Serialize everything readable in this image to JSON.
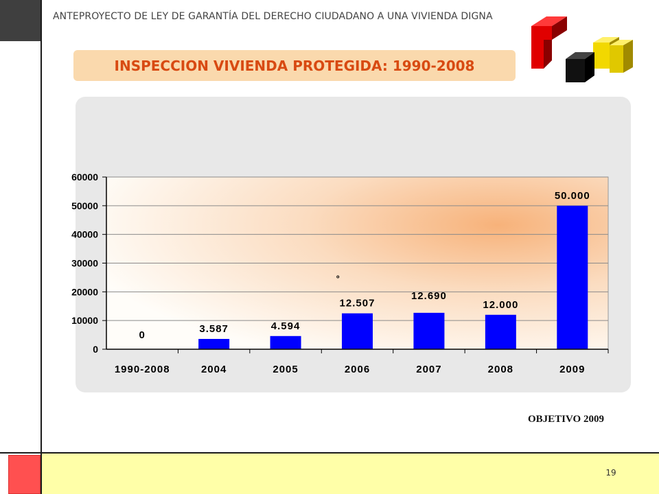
{
  "header": {
    "text": "ANTEPROYECTO  DE LEY DE GARANTÍA DEL DERECHO CIUDADANO A UNA VIVIENDA DIGNA"
  },
  "title": "INSPECCION VIVIENDA PROTEGIDA: 1990-2008",
  "colors": {
    "title_band": "#fad9ad",
    "title_text": "#d84a12",
    "bar_fill": "#0000ff",
    "footer_red": "#ff5050",
    "footer_yellow": "#ffffa8",
    "logo_red": "#e00000",
    "logo_black": "#111111",
    "logo_yellow": "#f2d800"
  },
  "chart_data": {
    "type": "bar",
    "categories": [
      "1990-2008",
      "2004",
      "2005",
      "2006",
      "2007",
      "2008",
      "2009"
    ],
    "values": [
      0,
      3587,
      4594,
      12507,
      12690,
      12000,
      50000
    ],
    "data_labels": [
      "0",
      "3.587",
      "4.594",
      "12.507",
      "12.690",
      "12.000",
      "50.000"
    ],
    "y_ticks": [
      "0",
      "10000",
      "20000",
      "30000",
      "40000",
      "50000",
      "60000"
    ],
    "ylim": [
      0,
      60000
    ],
    "grid": true,
    "annotation": "º"
  },
  "objetivo": "OBJETIVO 2009",
  "page_number": "19"
}
